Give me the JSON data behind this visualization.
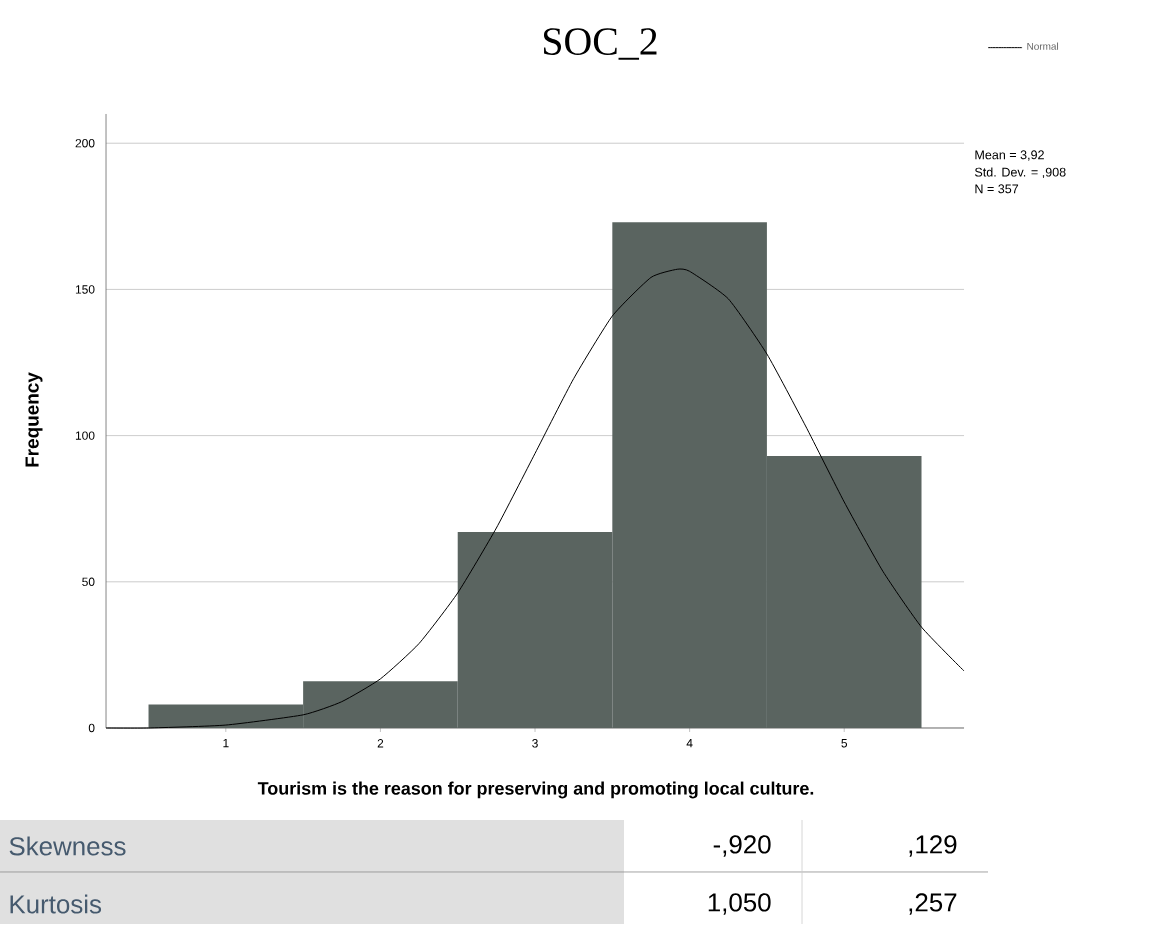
{
  "chart_data": {
    "type": "histogram",
    "title": "SOC_2",
    "xlabel": "Tourism is the reason for preserving and promoting local culture.",
    "ylabel": "Frequency",
    "bins": [
      0.5,
      1.5,
      2.5,
      3.5,
      4.5,
      5.5
    ],
    "series": [
      {
        "color": "#5a6460",
        "values": [
          8,
          16,
          67,
          173,
          93
        ]
      },
      {
        "type": "line",
        "name": "Normal",
        "color": "#000000",
        "x": [
          0.225,
          0.5,
          1,
          1.5,
          1.75,
          2,
          2.25,
          2.5,
          2.75,
          3,
          3.25,
          3.5,
          3.75,
          3.92,
          4,
          4.25,
          4.5,
          4.75,
          5,
          5.25,
          5.5,
          5.775
        ],
        "values": [
          0,
          0,
          1,
          4.5,
          9,
          16.8,
          28.9,
          46.2,
          68.4,
          93.9,
          119.5,
          140.9,
          154.1,
          156.9,
          156.2,
          146.8,
          127.9,
          103.3,
          77.3,
          53.6,
          34.5,
          19.5
        ]
      }
    ],
    "xlim": [
      0.225,
      5.775
    ],
    "ylim": [
      0,
      210
    ],
    "xticks": [
      1,
      2,
      3,
      4,
      5
    ],
    "yticks": [
      0,
      50,
      100,
      150,
      200
    ],
    "grid": "y",
    "legend": "top right",
    "marker": "none",
    "annotations": [
      "Mean = 3,92",
      "Std. Dev. = ,908",
      "N = 357",
      "Skewness",
      "-,920",
      ",129",
      "Kurtosis",
      "1,050",
      ",257"
    ]
  }
}
